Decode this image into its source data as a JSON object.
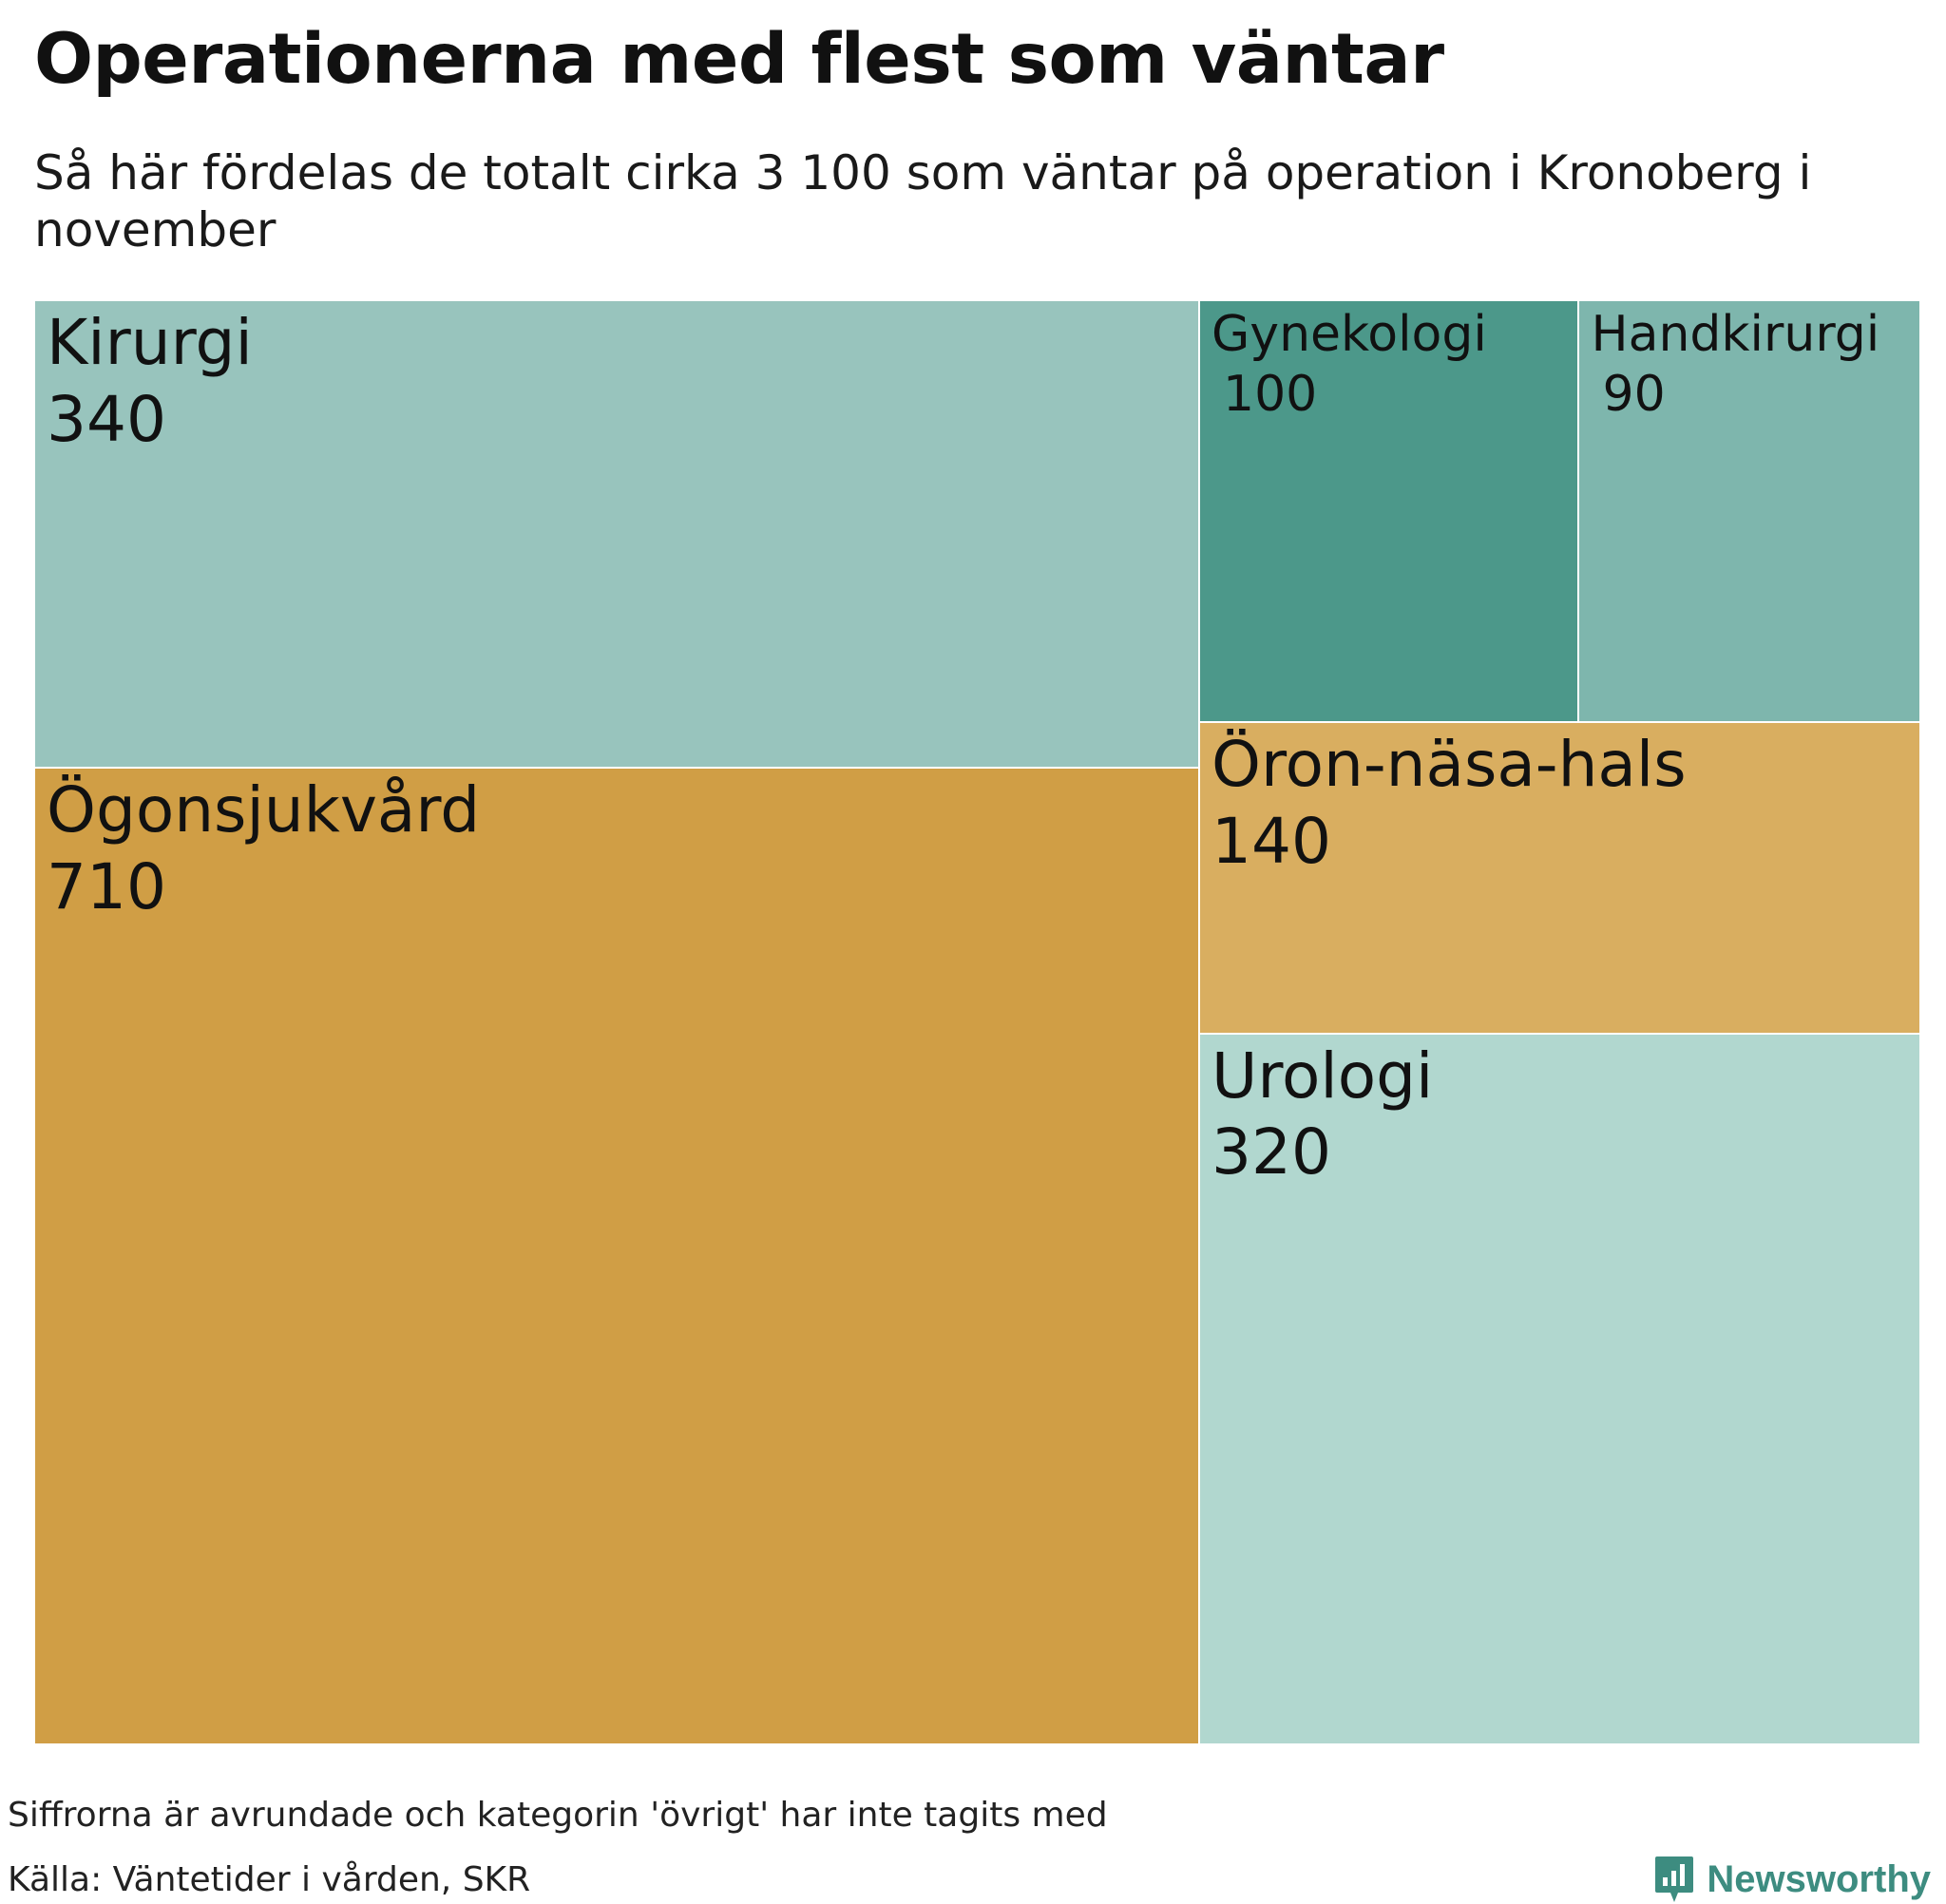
{
  "chart_data": {
    "type": "treemap",
    "title": "Operationerna med flest som väntar",
    "subtitle": "Så här fördelas de totalt cirka 3 100 som väntar på operation i Kronoberg i november",
    "items": [
      {
        "name": "Ögonsjukvård",
        "value": 710,
        "value_label": "710",
        "color": "#d09e45"
      },
      {
        "name": "Kirurgi",
        "value": 340,
        "value_label": "340",
        "color": "#98c4bd"
      },
      {
        "name": "Urologi",
        "value": 320,
        "value_label": "320",
        "color": "#b1d7cf"
      },
      {
        "name": "Öron-näsa-hals",
        "value": 140,
        "value_label": "140",
        "color": "#d9ae60"
      },
      {
        "name": "Gynekologi",
        "value": 100,
        "value_label": "100",
        "color": "#4c988a"
      },
      {
        "name": "Handkirurgi",
        "value": 90,
        "value_label": "90",
        "color": "#7eb6ad"
      }
    ]
  },
  "footer": {
    "note": "Siffrorna är avrundade och kategorin 'övrigt' har inte tagits med",
    "source": "Källa: Väntetider i vården, SKR"
  },
  "logo": {
    "text": "Newsworthy",
    "icon": "newsworthy-logo-icon",
    "color": "#3d8c80"
  }
}
